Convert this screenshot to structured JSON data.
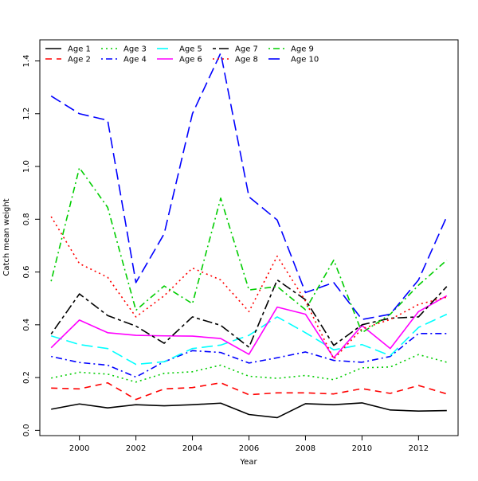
{
  "chart_data": {
    "type": "line",
    "title": "",
    "xlabel": "Year",
    "ylabel": "Catch mean weight",
    "xlim": [
      1998.6,
      2013.4
    ],
    "ylim": [
      -0.02,
      1.48
    ],
    "x": [
      1999,
      2000,
      2001,
      2002,
      2003,
      2004,
      2005,
      2006,
      2007,
      2008,
      2009,
      2010,
      2011,
      2012,
      2013
    ],
    "x_ticks": [
      2000,
      2002,
      2004,
      2006,
      2008,
      2010,
      2012
    ],
    "x_tick_labels": [
      "2000",
      "2002",
      "2004",
      "2006",
      "2008",
      "2010",
      "2012"
    ],
    "y_ticks": [
      0.0,
      0.2,
      0.4,
      0.6,
      0.8,
      1.0,
      1.2,
      1.4
    ],
    "y_tick_labels": [
      "0.0",
      "0.2",
      "0.4",
      "0.6",
      "0.8",
      "1.0",
      "1.2",
      "1.4"
    ],
    "legend_position": "top-left",
    "series": [
      {
        "name": "Age 1",
        "color": "#000000",
        "dash": "solid",
        "values": [
          0.08,
          0.1,
          0.085,
          0.097,
          0.093,
          0.097,
          0.103,
          0.06,
          0.048,
          0.101,
          0.097,
          0.104,
          0.077,
          0.073,
          0.075
        ]
      },
      {
        "name": "Age 2",
        "color": "#ff0000",
        "dash": "dashed",
        "values": [
          0.16,
          0.157,
          0.18,
          0.117,
          0.157,
          0.162,
          0.18,
          0.135,
          0.142,
          0.142,
          0.138,
          0.158,
          0.14,
          0.17,
          0.138
        ]
      },
      {
        "name": "Age 3",
        "color": "#00cd00",
        "dash": "dotted",
        "values": [
          0.198,
          0.22,
          0.213,
          0.183,
          0.216,
          0.222,
          0.247,
          0.205,
          0.197,
          0.208,
          0.192,
          0.237,
          0.24,
          0.287,
          0.258
        ]
      },
      {
        "name": "Age 4",
        "color": "#0000ff",
        "dash": "dotdash",
        "values": [
          0.28,
          0.257,
          0.247,
          0.202,
          0.26,
          0.302,
          0.295,
          0.255,
          0.275,
          0.297,
          0.265,
          0.258,
          0.28,
          0.367,
          0.367
        ]
      },
      {
        "name": "Age 5",
        "color": "#00ffff",
        "dash": "longdash",
        "values": [
          0.358,
          0.325,
          0.31,
          0.25,
          0.26,
          0.31,
          0.323,
          0.36,
          0.43,
          0.37,
          0.305,
          0.325,
          0.283,
          0.39,
          0.44
        ]
      },
      {
        "name": "Age 6",
        "color": "#ff00ff",
        "dash": "solid",
        "values": [
          0.313,
          0.418,
          0.37,
          0.36,
          0.358,
          0.357,
          0.348,
          0.288,
          0.467,
          0.44,
          0.275,
          0.397,
          0.31,
          0.45,
          0.51
        ]
      },
      {
        "name": "Age 7",
        "color": "#000000",
        "dash": "twodash",
        "values": [
          0.365,
          0.517,
          0.435,
          0.395,
          0.33,
          0.43,
          0.398,
          0.315,
          0.57,
          0.495,
          0.322,
          0.4,
          0.425,
          0.43,
          0.545
        ]
      },
      {
        "name": "Age 8",
        "color": "#ff0000",
        "dash": "dotted",
        "values": [
          0.81,
          0.632,
          0.58,
          0.43,
          0.51,
          0.615,
          0.57,
          0.45,
          0.66,
          0.49,
          0.27,
          0.385,
          0.42,
          0.477,
          0.505
        ]
      },
      {
        "name": "Age 9",
        "color": "#00cd00",
        "dash": "dotdash",
        "values": [
          0.565,
          0.995,
          0.845,
          0.455,
          0.547,
          0.48,
          0.88,
          0.532,
          0.545,
          0.457,
          0.645,
          0.37,
          0.44,
          0.55,
          0.645
        ]
      },
      {
        "name": "Age 10",
        "color": "#0000ff",
        "dash": "longdash",
        "values": [
          1.267,
          1.2,
          1.175,
          0.56,
          0.745,
          1.2,
          1.43,
          0.885,
          0.797,
          0.522,
          0.56,
          0.42,
          0.44,
          0.57,
          0.81
        ]
      }
    ]
  }
}
